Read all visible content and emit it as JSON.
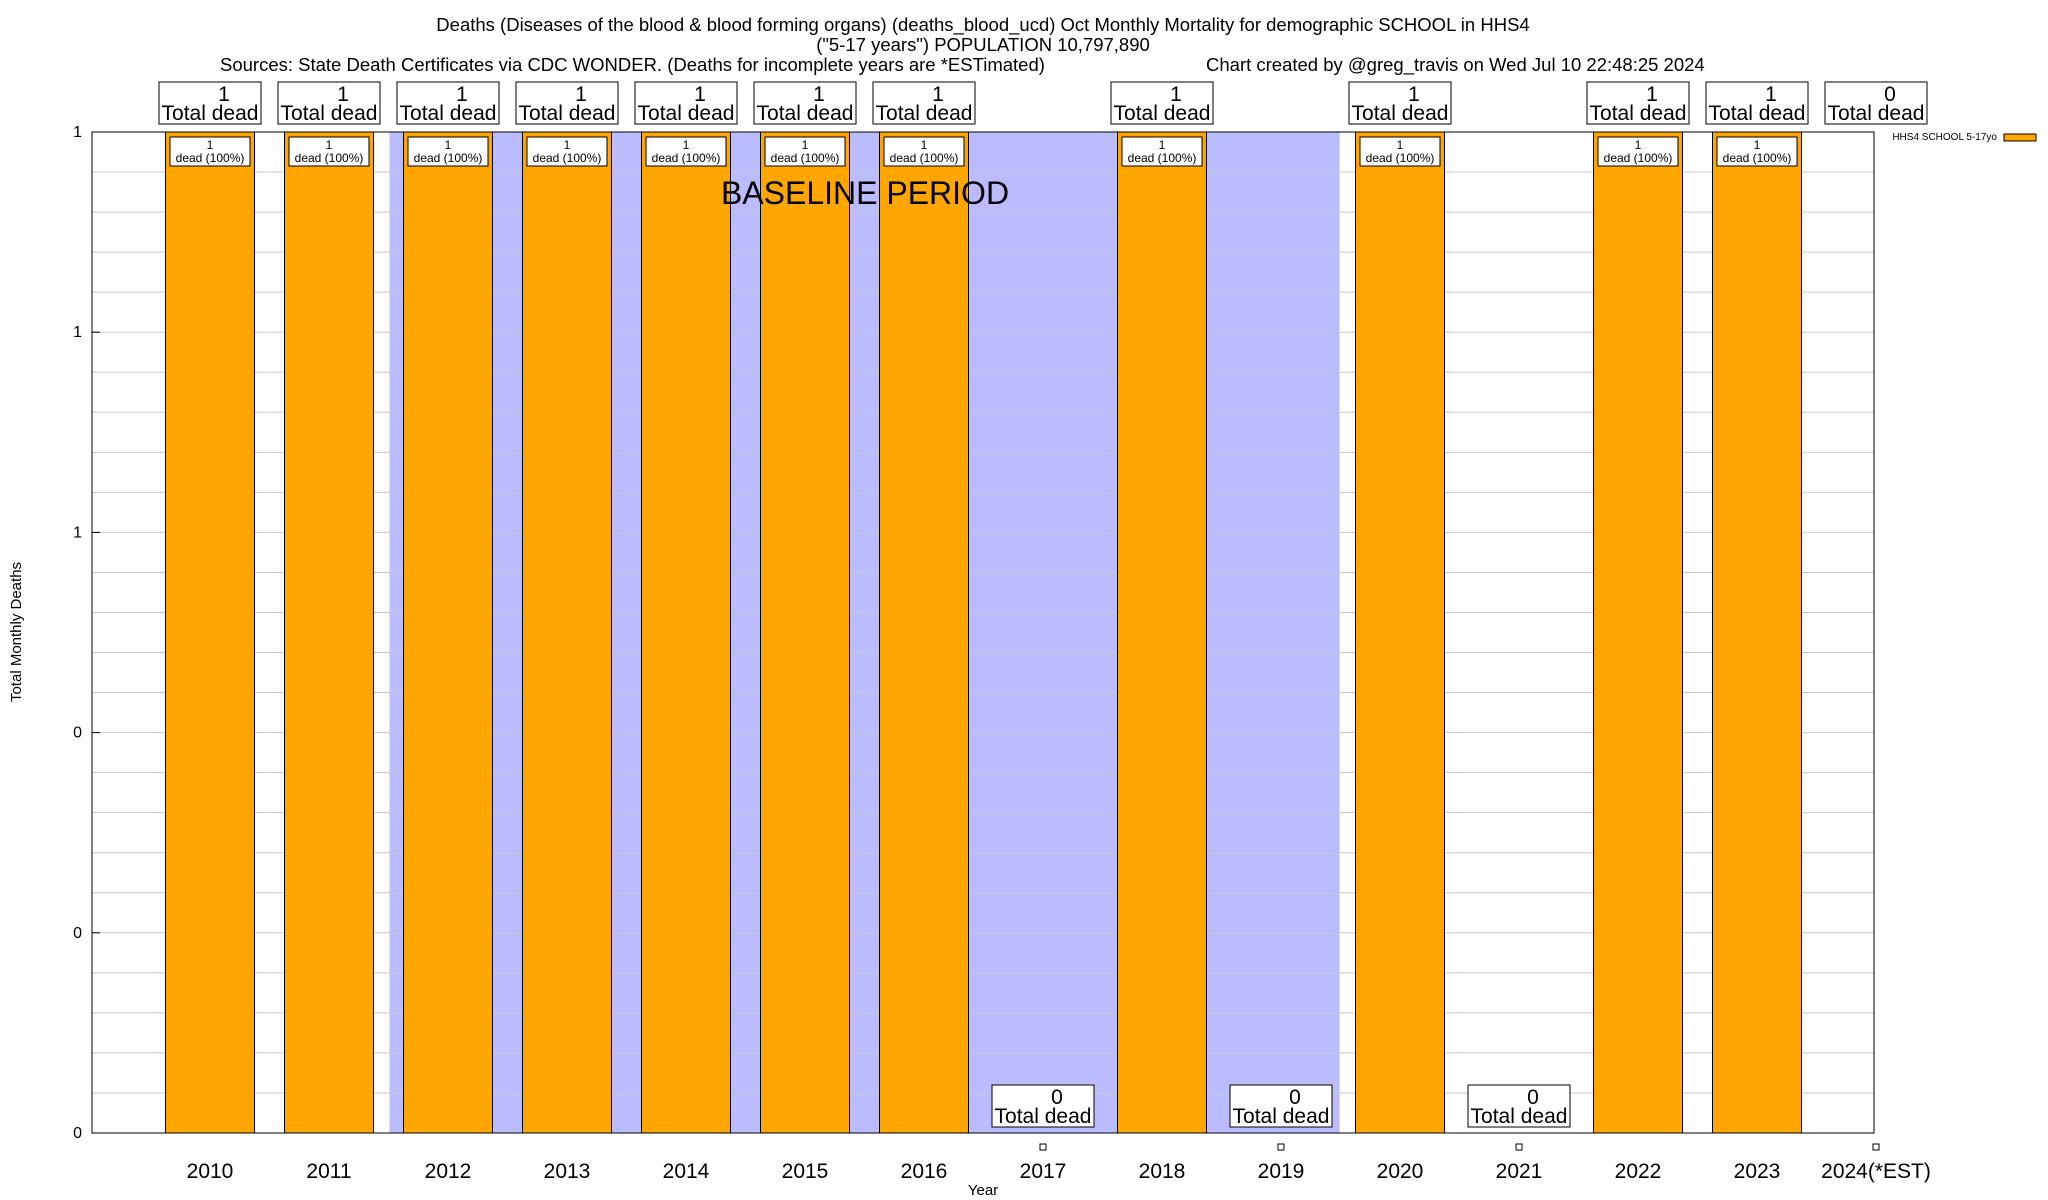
{
  "title": {
    "line1": "Deaths (Diseases of the blood & blood forming organs) (deaths_blood_ucd) Oct Monthly Mortality for demographic SCHOOL in HHS4",
    "line2": "(\"5-17 years\") POPULATION 10,797,890",
    "line3_left": "Sources: State Death Certificates via CDC WONDER. (Deaths for incomplete years are *ESTimated)",
    "line3_right": "Chart created by @greg_travis on Wed Jul 10 22:48:25 2024"
  },
  "baseline_label": "BASELINE PERIOD",
  "colors": {
    "bar": "#ffa500",
    "baseline_shade": "#bbbbff",
    "grid": "#c8c8c8"
  },
  "chart_data": {
    "type": "bar",
    "xlabel": "Year",
    "ylabel": "Total Monthly Deaths",
    "ylim": [
      0,
      1
    ],
    "y_tick_labels": [
      "0",
      "0",
      "0",
      "1",
      "1",
      "1"
    ],
    "grid": true,
    "legend_position": "top-right",
    "categories": [
      "2010",
      "2011",
      "2012",
      "2013",
      "2014",
      "2015",
      "2016",
      "2017",
      "2018",
      "2019",
      "2020",
      "2021",
      "2022",
      "2023",
      "2024(*EST)"
    ],
    "series": [
      {
        "name": "HHS4 SCHOOL 5-17yo",
        "values": [
          1,
          1,
          1,
          1,
          1,
          1,
          1,
          0,
          1,
          0,
          1,
          0,
          1,
          1,
          0
        ]
      }
    ],
    "total_labels": [
      "1",
      "1",
      "1",
      "1",
      "1",
      "1",
      "1",
      "0",
      "1",
      "0",
      "1",
      "0",
      "1",
      "1",
      "0"
    ],
    "total_suffix": "Total dead",
    "bar_labels": [
      "1",
      "1",
      "1",
      "1",
      "1",
      "1",
      "1",
      "",
      "1",
      "",
      "1",
      "",
      "1",
      "1",
      ""
    ],
    "bar_label_suffix": "dead (100%)",
    "baseline_shaded_categories": [
      "2012",
      "2013",
      "2014",
      "2015",
      "2016",
      "2017",
      "2018",
      "2019"
    ]
  }
}
